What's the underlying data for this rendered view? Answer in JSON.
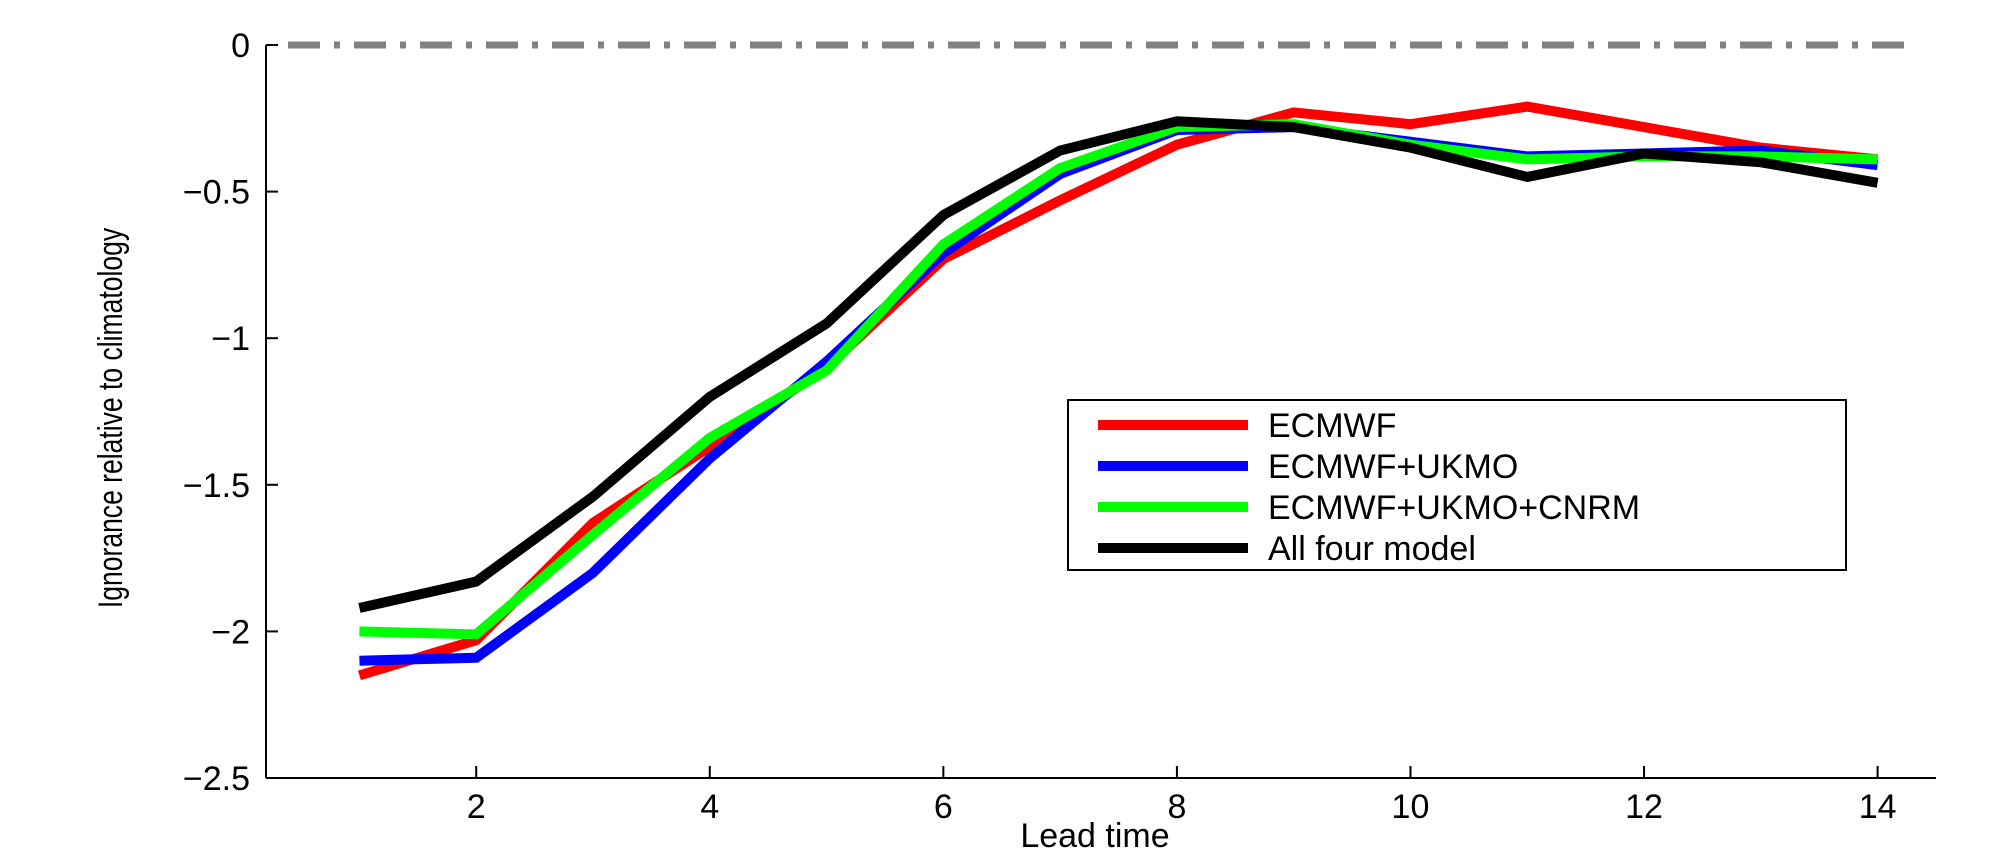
{
  "chart_data": {
    "type": "line",
    "xlabel": "Lead time",
    "ylabel": "Ignorance relative to climatology",
    "xlim": [
      0.2,
      14.5
    ],
    "ylim": [
      -2.5,
      0
    ],
    "xticks": [
      2,
      4,
      6,
      8,
      10,
      12,
      14
    ],
    "yticks": [
      0,
      -0.5,
      -1,
      -1.5,
      -2,
      -2.5
    ],
    "xtick_labels": [
      "2",
      "4",
      "6",
      "8",
      "10",
      "12",
      "14"
    ],
    "ytick_labels": [
      "0",
      "−0.5",
      "−1",
      "−1.5",
      "−2",
      "−2.5"
    ],
    "grid": false,
    "legend_position": "center-right",
    "reference_line": {
      "y": 0,
      "style": "dash-dot",
      "color": "#808080"
    },
    "x": [
      1,
      2,
      3,
      4,
      5,
      6,
      7,
      8,
      9,
      10,
      11,
      12,
      13,
      14
    ],
    "series": [
      {
        "name": "ECMWF",
        "color": "#ff0000",
        "values": [
          -2.15,
          -2.03,
          -1.63,
          -1.37,
          -1.1,
          -0.73,
          -0.53,
          -0.34,
          -0.23,
          -0.27,
          -0.21,
          -0.28,
          -0.35,
          -0.39
        ]
      },
      {
        "name": "ECMWF+UKMO",
        "color": "#0000ff",
        "values": [
          -2.1,
          -2.09,
          -1.8,
          -1.41,
          -1.08,
          -0.71,
          -0.44,
          -0.29,
          -0.28,
          -0.33,
          -0.38,
          -0.37,
          -0.36,
          -0.41
        ]
      },
      {
        "name": "ECMWF+UKMO+CNRM",
        "color": "#00ff00",
        "values": [
          -2.0,
          -2.01,
          -1.67,
          -1.34,
          -1.11,
          -0.68,
          -0.42,
          -0.28,
          -0.27,
          -0.34,
          -0.39,
          -0.38,
          -0.38,
          -0.39
        ]
      },
      {
        "name": "All four model",
        "color": "#000000",
        "values": [
          -1.92,
          -1.83,
          -1.54,
          -1.2,
          -0.95,
          -0.58,
          -0.36,
          -0.26,
          -0.28,
          -0.35,
          -0.45,
          -0.37,
          -0.4,
          -0.47
        ]
      }
    ]
  }
}
